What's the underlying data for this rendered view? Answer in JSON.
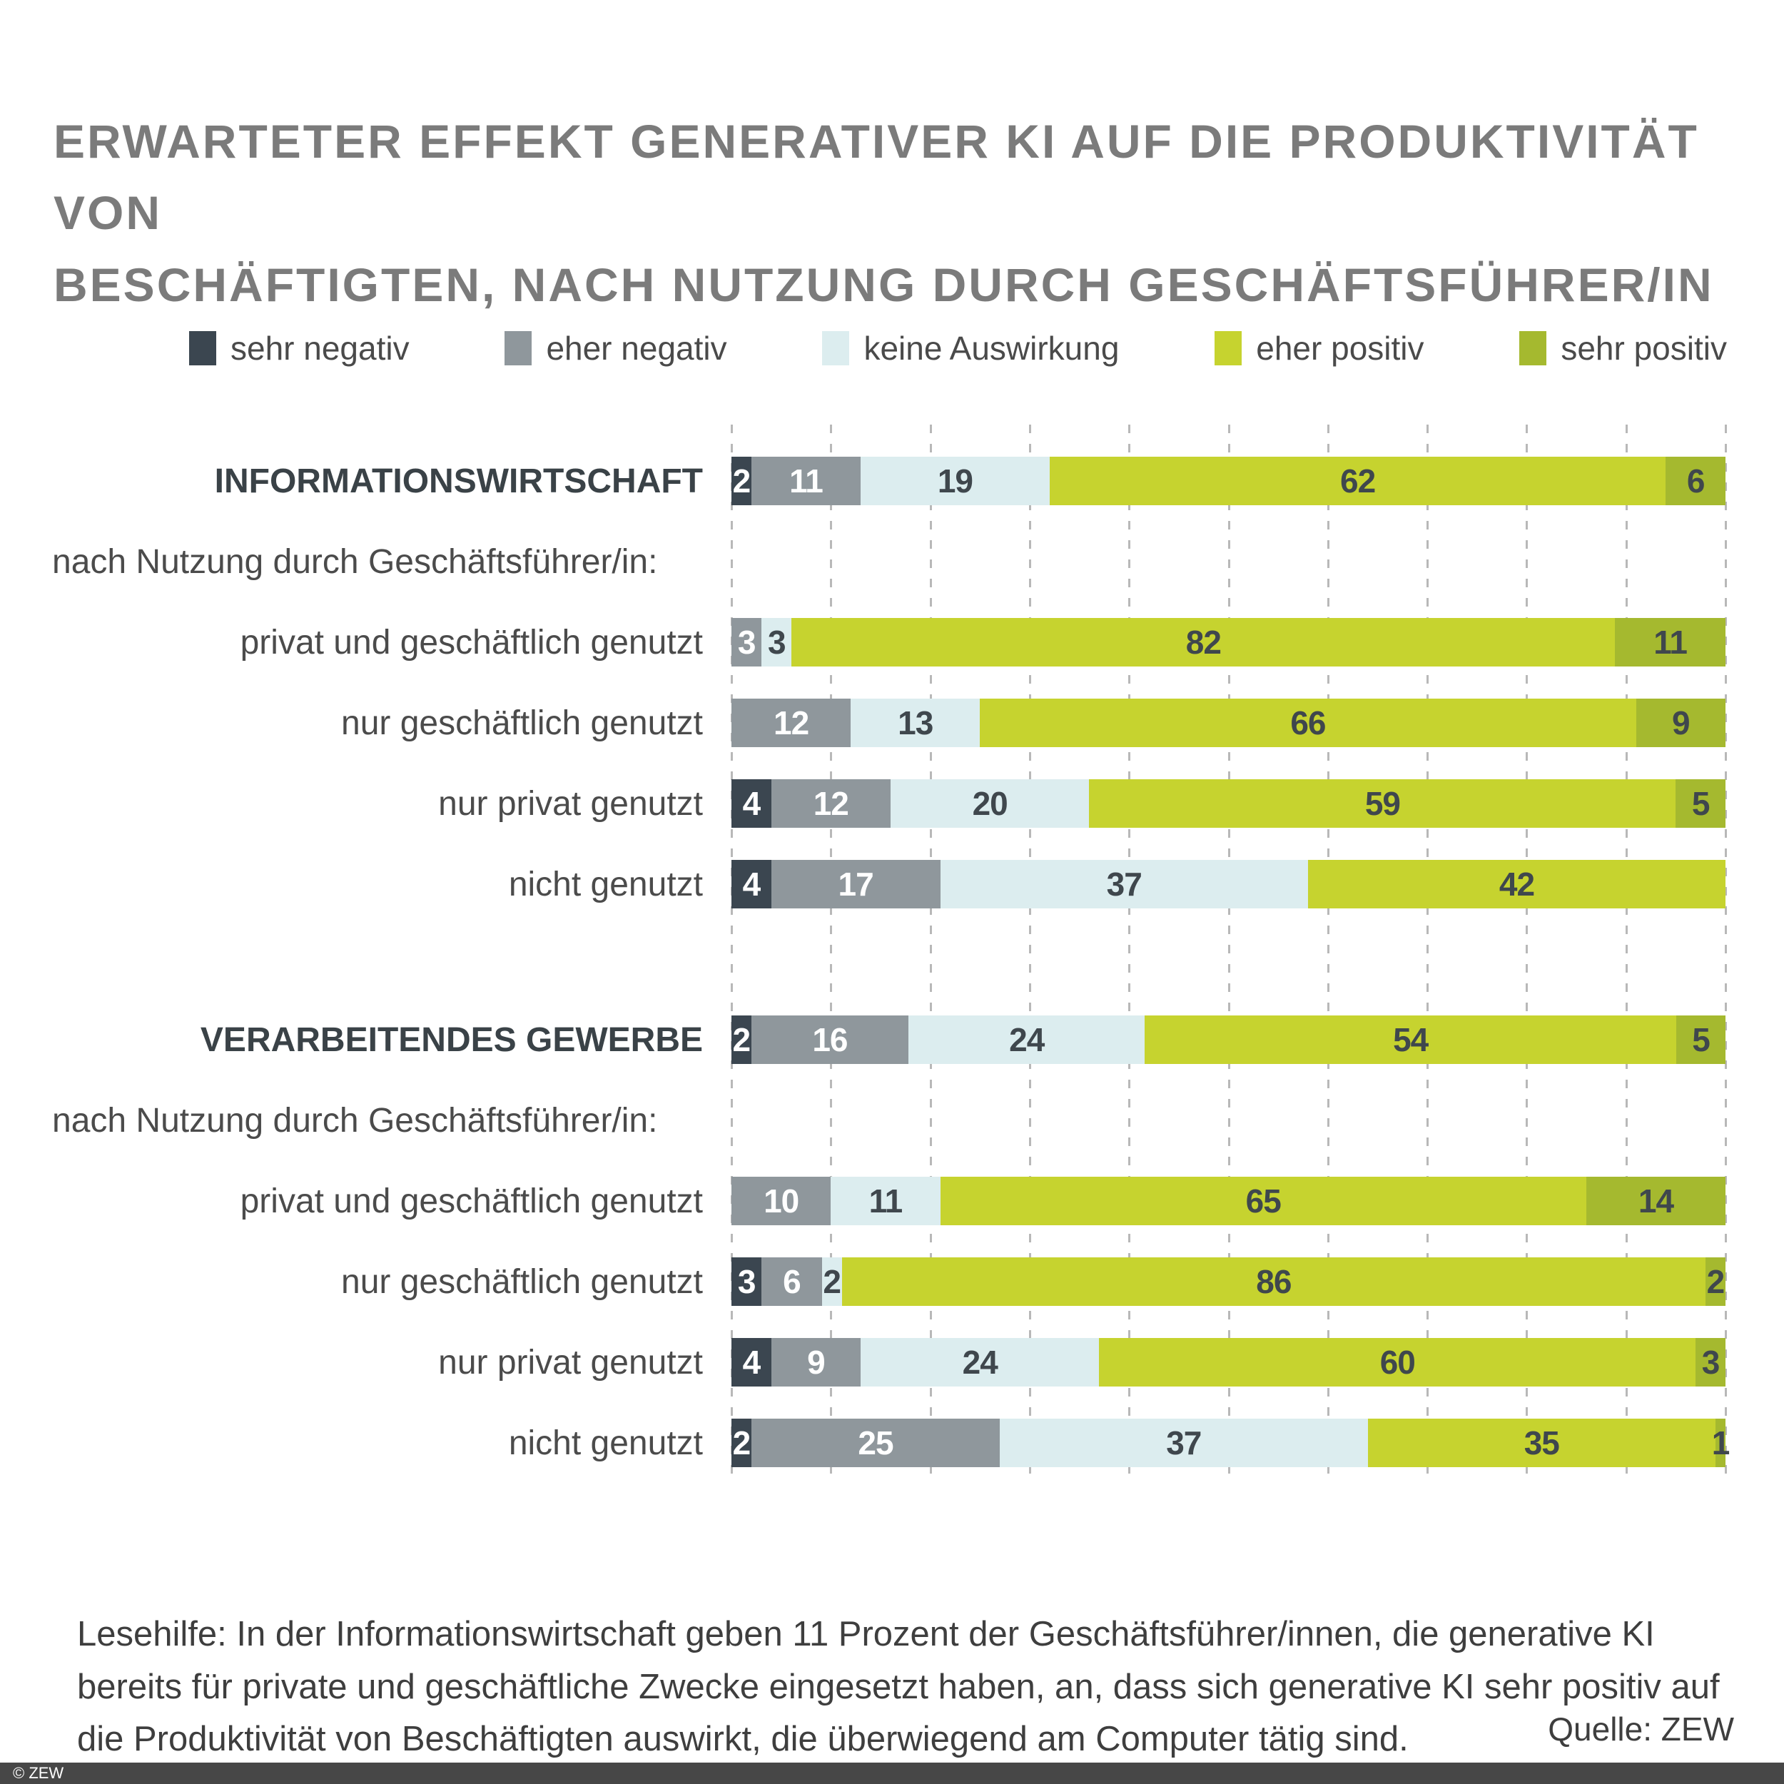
{
  "title": {
    "line1": "ERWARTETER EFFEKT GENERATIVER KI AUF DIE PRODUKTIVITÄT VON",
    "line2": "BESCHÄFTIGTEN, NACH NUTZUNG DURCH GESCHÄFTSFÜHRER/IN"
  },
  "chart_data": {
    "type": "bar",
    "orientation": "horizontal",
    "stacked": true,
    "unit": "percent",
    "xlim": [
      0,
      100
    ],
    "ticks": [
      0,
      10,
      20,
      30,
      40,
      50,
      60,
      70,
      80,
      90,
      100
    ],
    "grid": true,
    "legend_position": "top",
    "series": [
      {
        "name": "sehr negativ",
        "color": "#3B4650",
        "text_color": "#FFFFFF"
      },
      {
        "name": "eher negativ",
        "color": "#8F979C",
        "text_color": "#FFFFFF"
      },
      {
        "name": "keine Auswirkung",
        "color": "#DCEDEF",
        "text_color": "#3F474D"
      },
      {
        "name": "eher positiv",
        "color": "#C6D32F",
        "text_color": "#3F474D"
      },
      {
        "name": "sehr positiv",
        "color": "#A5B92F",
        "text_color": "#3F474D"
      }
    ],
    "sections": [
      {
        "header": {
          "label": "INFORMATIONSWIRTSCHAFT",
          "values": [
            2,
            11,
            19,
            62,
            6
          ]
        },
        "subheader": "nach Nutzung durch Geschäftsführer/in:",
        "rows": [
          {
            "label": "privat und geschäftlich genutzt",
            "values": [
              0,
              3,
              3,
              82,
              11
            ]
          },
          {
            "label": "nur geschäftlich genutzt",
            "values": [
              0,
              12,
              13,
              66,
              9
            ]
          },
          {
            "label": "nur privat genutzt",
            "values": [
              4,
              12,
              20,
              59,
              5
            ]
          },
          {
            "label": "nicht genutzt",
            "values": [
              4,
              17,
              37,
              42,
              0
            ]
          }
        ]
      },
      {
        "header": {
          "label": "VERARBEITENDES GEWERBE",
          "values": [
            2,
            16,
            24,
            54,
            5
          ]
        },
        "subheader": "nach Nutzung durch Geschäftsführer/in:",
        "rows": [
          {
            "label": "privat und geschäftlich genutzt",
            "values": [
              0,
              10,
              11,
              65,
              14
            ]
          },
          {
            "label": "nur geschäftlich genutzt",
            "values": [
              3,
              6,
              2,
              86,
              2
            ]
          },
          {
            "label": "nur privat genutzt",
            "values": [
              4,
              9,
              24,
              60,
              3
            ]
          },
          {
            "label": "nicht genutzt",
            "values": [
              2,
              25,
              37,
              35,
              1
            ]
          }
        ]
      }
    ]
  },
  "footer": {
    "lesehilfe": "Lesehilfe: In der Informationswirtschaft geben 11 Prozent der Geschäftsführer/innen, die generative KI bereits für private und geschäftliche Zwecke eingesetzt haben, an, dass sich generative KI sehr positiv auf die Produktivität von Beschäftigten auswirkt, die überwiegend am Computer tätig sind.",
    "quelle": "Quelle: ZEW",
    "copyright": "© ZEW"
  }
}
